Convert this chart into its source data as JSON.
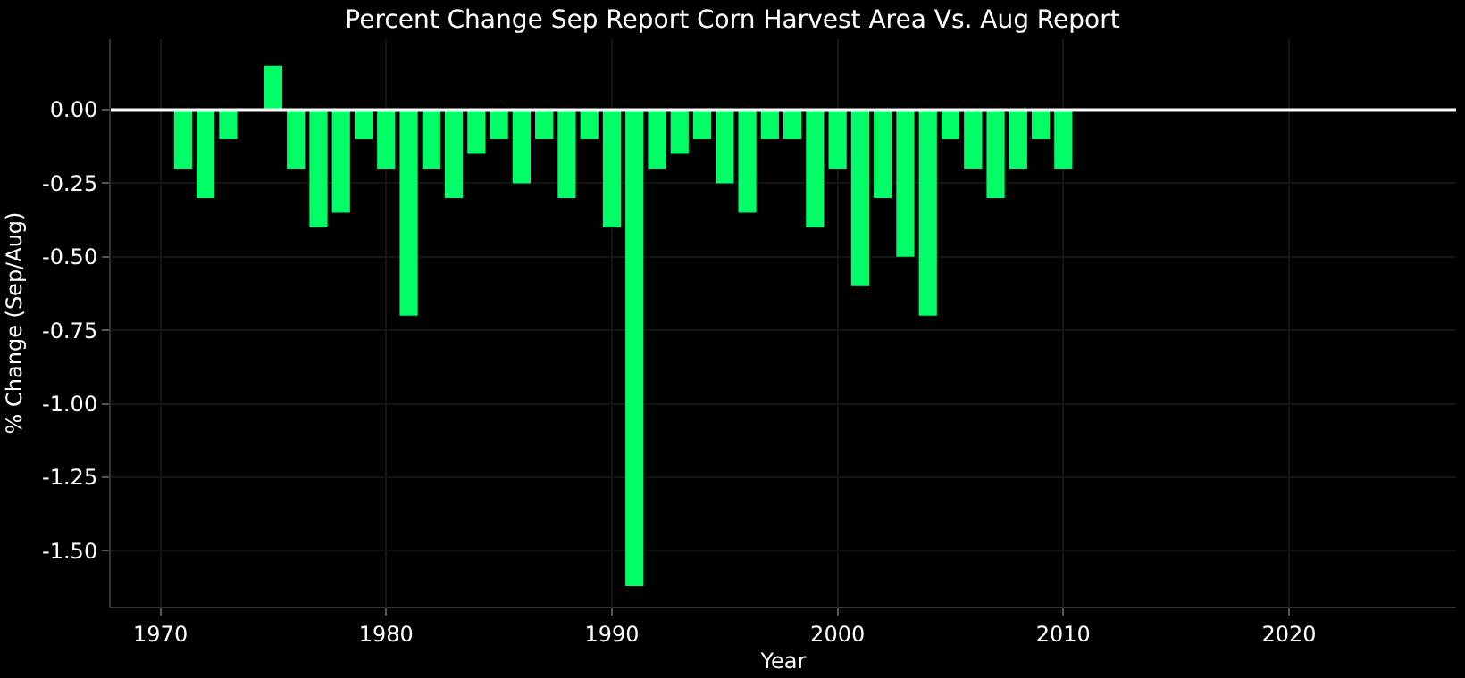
{
  "chart_data": {
    "type": "bar",
    "title": "Percent Change Sep Report Corn Harvest Area Vs. Aug Report",
    "xlabel": "Year",
    "ylabel": "% Change (Sep/Aug)",
    "x": [
      1971,
      1972,
      1973,
      1974,
      1975,
      1976,
      1977,
      1978,
      1979,
      1980,
      1981,
      1982,
      1983,
      1984,
      1985,
      1986,
      1987,
      1988,
      1989,
      1990,
      1991,
      1992,
      1993,
      1994,
      1995,
      1996,
      1997,
      1998,
      1999,
      2000,
      2001,
      2002,
      2003,
      2004,
      2005,
      2006,
      2007,
      2008,
      2009,
      2010
    ],
    "values": [
      -0.2,
      -0.3,
      -0.1,
      null,
      0.15,
      -0.2,
      -0.4,
      -0.35,
      -0.1,
      -0.2,
      -0.7,
      -0.2,
      -0.3,
      -0.15,
      -0.1,
      -0.25,
      -0.1,
      -0.3,
      -0.1,
      -0.4,
      -1.62,
      -0.2,
      -0.15,
      -0.1,
      -0.25,
      -0.35,
      -0.1,
      -0.1,
      -0.4,
      -0.2,
      -0.6,
      -0.3,
      -0.5,
      -0.7,
      -0.1,
      -0.2,
      -0.3,
      -0.2,
      -0.1,
      -0.2
    ],
    "color": "#00ff66",
    "xlim": [
      1967.8,
      2027.4
    ],
    "xticks": [
      1970,
      1980,
      1990,
      2000,
      2010,
      2020
    ],
    "ylim": [
      -1.69,
      0.24
    ],
    "yticks": [
      {
        "value": 0,
        "label": "0.00"
      },
      -0.25,
      {
        "value": -0.5,
        "label": "-0.50"
      },
      -0.75,
      {
        "value": -1,
        "label": "-1.00"
      },
      -1.25,
      {
        "value": -1.5,
        "label": "-1.50"
      }
    ],
    "ref_lines": [
      {
        "axis": "y",
        "value": 0,
        "color": "#ffffff"
      }
    ],
    "grid": true
  }
}
